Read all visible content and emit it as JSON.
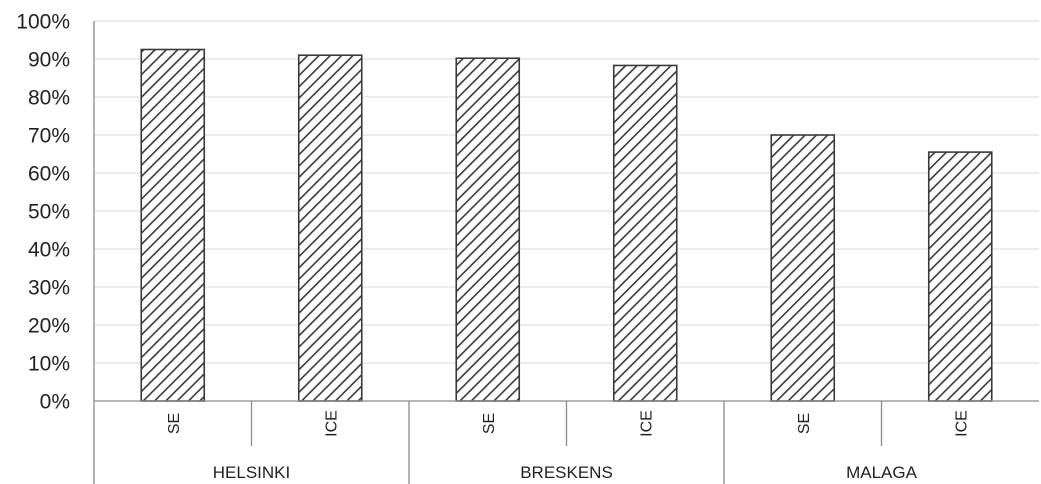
{
  "chart_data": {
    "type": "bar",
    "categories": [
      "SE",
      "ICE",
      "SE",
      "ICE",
      "SE",
      "ICE"
    ],
    "groups": [
      {
        "label": "HELSINKI",
        "categories": [
          "SE",
          "ICE"
        ]
      },
      {
        "label": "BRESKENS",
        "categories": [
          "SE",
          "ICE"
        ]
      },
      {
        "label": "MALAGA",
        "categories": [
          "SE",
          "ICE"
        ]
      }
    ],
    "values": [
      92.5,
      91,
      90.2,
      88.3,
      70,
      65.5
    ],
    "yticks": [
      "0%",
      "10%",
      "20%",
      "30%",
      "40%",
      "50%",
      "60%",
      "70%",
      "80%",
      "90%",
      "100%"
    ],
    "ylim": [
      0,
      100
    ],
    "grid": true,
    "bar_fill": "diagonal-hatch",
    "colors": {
      "bar_stroke": "#3a3a3a",
      "hatch": "#3a3a3a",
      "grid": "#d9d9d9",
      "axis": "#8c8c8c"
    }
  }
}
